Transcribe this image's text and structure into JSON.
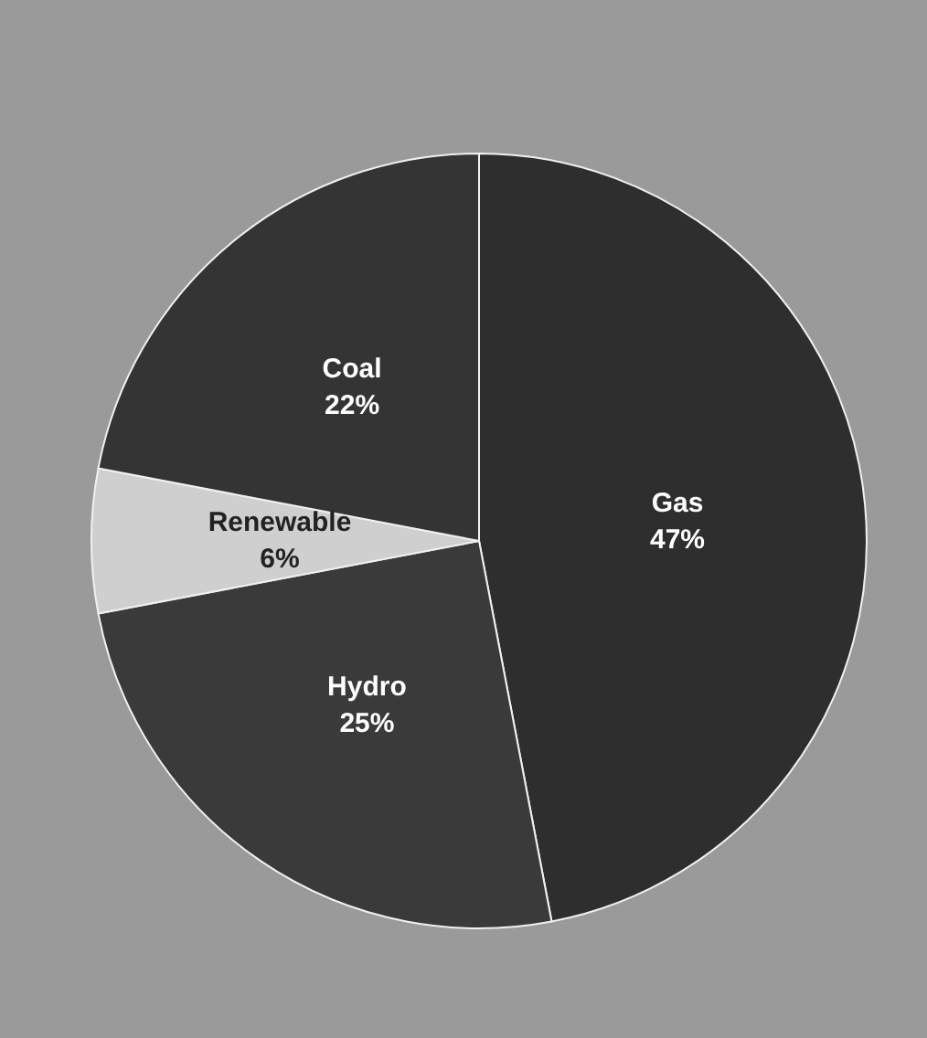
{
  "chart_data": {
    "type": "pie",
    "categories": [
      "Gas",
      "Hydro",
      "Renewable",
      "Coal"
    ],
    "values": [
      47,
      25,
      6,
      22
    ],
    "value_labels": [
      "47%",
      "25%",
      "6%",
      "22%"
    ],
    "colors": [
      "#2e2e2e",
      "#3a3a3a",
      "#cfcfcf",
      "#343434"
    ]
  }
}
